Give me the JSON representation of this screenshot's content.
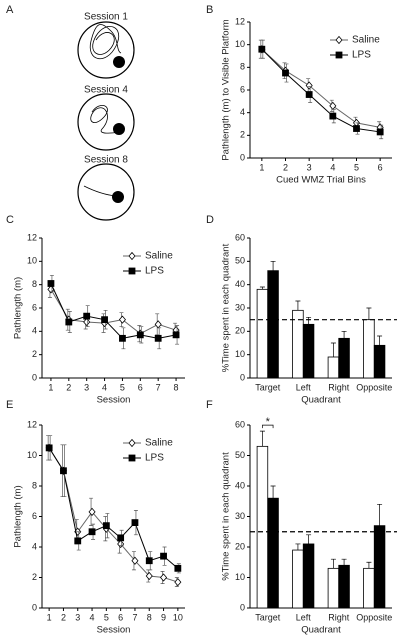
{
  "chart_data": [
    {
      "type": "diagram",
      "label": "A",
      "sessions": [
        "Session 1",
        "Session 4",
        "Session 8"
      ]
    },
    {
      "type": "line",
      "label": "B",
      "x_label": "Cued WMZ Trial Bins",
      "y_label": "Pathlength (m) to Visible Platform",
      "x": [
        1,
        2,
        3,
        4,
        5,
        6
      ],
      "xlim": [
        0.5,
        6.5
      ],
      "xticks": [
        1,
        2,
        3,
        4,
        5,
        6
      ],
      "ylim": [
        0,
        12
      ],
      "yticks": [
        0,
        2,
        4,
        6,
        8,
        10,
        12
      ],
      "legend": "upper right",
      "series": [
        {
          "name": "Saline",
          "color": "#ffffff",
          "marker": "diamond",
          "values": [
            9.6,
            7.7,
            6.4,
            4.6,
            3.1,
            2.7
          ],
          "errors": [
            0.8,
            0.7,
            0.6,
            0.5,
            0.5,
            0.5
          ]
        },
        {
          "name": "LPS",
          "color": "#000000",
          "marker": "square",
          "values": [
            9.6,
            7.5,
            5.6,
            3.7,
            2.6,
            2.3
          ],
          "errors": [
            0.8,
            0.8,
            0.7,
            0.6,
            0.5,
            0.6
          ]
        }
      ]
    },
    {
      "type": "line",
      "label": "C",
      "x_label": "Session",
      "y_label": "Pathlength (m)",
      "x": [
        1,
        2,
        3,
        4,
        5,
        6,
        7,
        8
      ],
      "xlim": [
        0.5,
        8.5
      ],
      "xticks": [
        1,
        2,
        3,
        4,
        5,
        6,
        7,
        8
      ],
      "ylim": [
        0,
        12
      ],
      "yticks": [
        0,
        2,
        4,
        6,
        8,
        10,
        12
      ],
      "legend": "upper right",
      "series": [
        {
          "name": "Saline",
          "color": "#ffffff",
          "marker": "diamond",
          "values": [
            7.6,
            5.0,
            4.8,
            4.7,
            5.0,
            3.8,
            4.6,
            4.1
          ],
          "errors": [
            0.7,
            0.9,
            0.6,
            0.8,
            0.6,
            0.7,
            0.9,
            0.6
          ]
        },
        {
          "name": "LPS",
          "color": "#000000",
          "marker": "square",
          "values": [
            8.1,
            4.8,
            5.3,
            5.0,
            3.4,
            3.7,
            3.4,
            3.7
          ],
          "errors": [
            0.7,
            0.9,
            0.9,
            0.8,
            0.9,
            0.7,
            0.9,
            0.8
          ]
        }
      ]
    },
    {
      "type": "bar",
      "label": "D",
      "x_label": "Quadrant",
      "y_label": "%Time spent in each quadrant",
      "categories": [
        "Target",
        "Left",
        "Right",
        "Opposite"
      ],
      "ylim": [
        0,
        60
      ],
      "yticks": [
        0,
        10,
        20,
        30,
        40,
        50,
        60
      ],
      "refline": 25,
      "series": [
        {
          "color": "#ffffff",
          "values": [
            38,
            29,
            9,
            25
          ],
          "errors": [
            1,
            4,
            6,
            5
          ]
        },
        {
          "color": "#000000",
          "values": [
            46,
            23,
            17,
            14
          ],
          "errors": [
            4,
            3,
            3,
            4
          ]
        }
      ]
    },
    {
      "type": "line",
      "label": "E",
      "x_label": "Session",
      "y_label": "Pathlength (m)",
      "x": [
        1,
        2,
        3,
        4,
        5,
        6,
        7,
        8,
        9,
        10
      ],
      "xlim": [
        0.5,
        10.5
      ],
      "xticks": [
        1,
        2,
        3,
        4,
        5,
        6,
        7,
        8,
        9,
        10
      ],
      "ylim": [
        0,
        12
      ],
      "yticks": [
        0,
        2,
        4,
        6,
        8,
        10,
        12
      ],
      "legend": "upper right",
      "series": [
        {
          "name": "Saline",
          "color": "#ffffff",
          "marker": "diamond",
          "values": [
            10.5,
            9.0,
            5.0,
            6.3,
            5.2,
            4.2,
            3.1,
            2.1,
            2.0,
            1.7
          ],
          "errors": [
            0.8,
            1.7,
            0.8,
            0.9,
            0.8,
            0.6,
            0.6,
            0.4,
            0.4,
            0.3
          ]
        },
        {
          "name": "LPS",
          "color": "#000000",
          "marker": "square",
          "values": [
            10.5,
            9.0,
            4.4,
            5.0,
            5.4,
            4.6,
            5.6,
            3.1,
            3.4,
            2.6
          ],
          "errors": [
            0.8,
            1.7,
            0.6,
            0.5,
            0.8,
            0.5,
            0.8,
            0.6,
            0.6,
            0.3
          ]
        }
      ]
    },
    {
      "type": "bar",
      "label": "F",
      "x_label": "Quadrant",
      "y_label": "%Time spent in each quadrant",
      "categories": [
        "Target",
        "Left",
        "Right",
        "Opposite"
      ],
      "ylim": [
        0,
        60
      ],
      "yticks": [
        0,
        10,
        20,
        30,
        40,
        50,
        60
      ],
      "refline": 25,
      "annotation": "*",
      "series": [
        {
          "color": "#ffffff",
          "values": [
            53,
            19,
            13,
            13
          ],
          "errors": [
            5,
            2,
            3,
            2
          ]
        },
        {
          "color": "#000000",
          "values": [
            36,
            21,
            14,
            27
          ],
          "errors": [
            4,
            3,
            2,
            7
          ]
        }
      ]
    }
  ]
}
